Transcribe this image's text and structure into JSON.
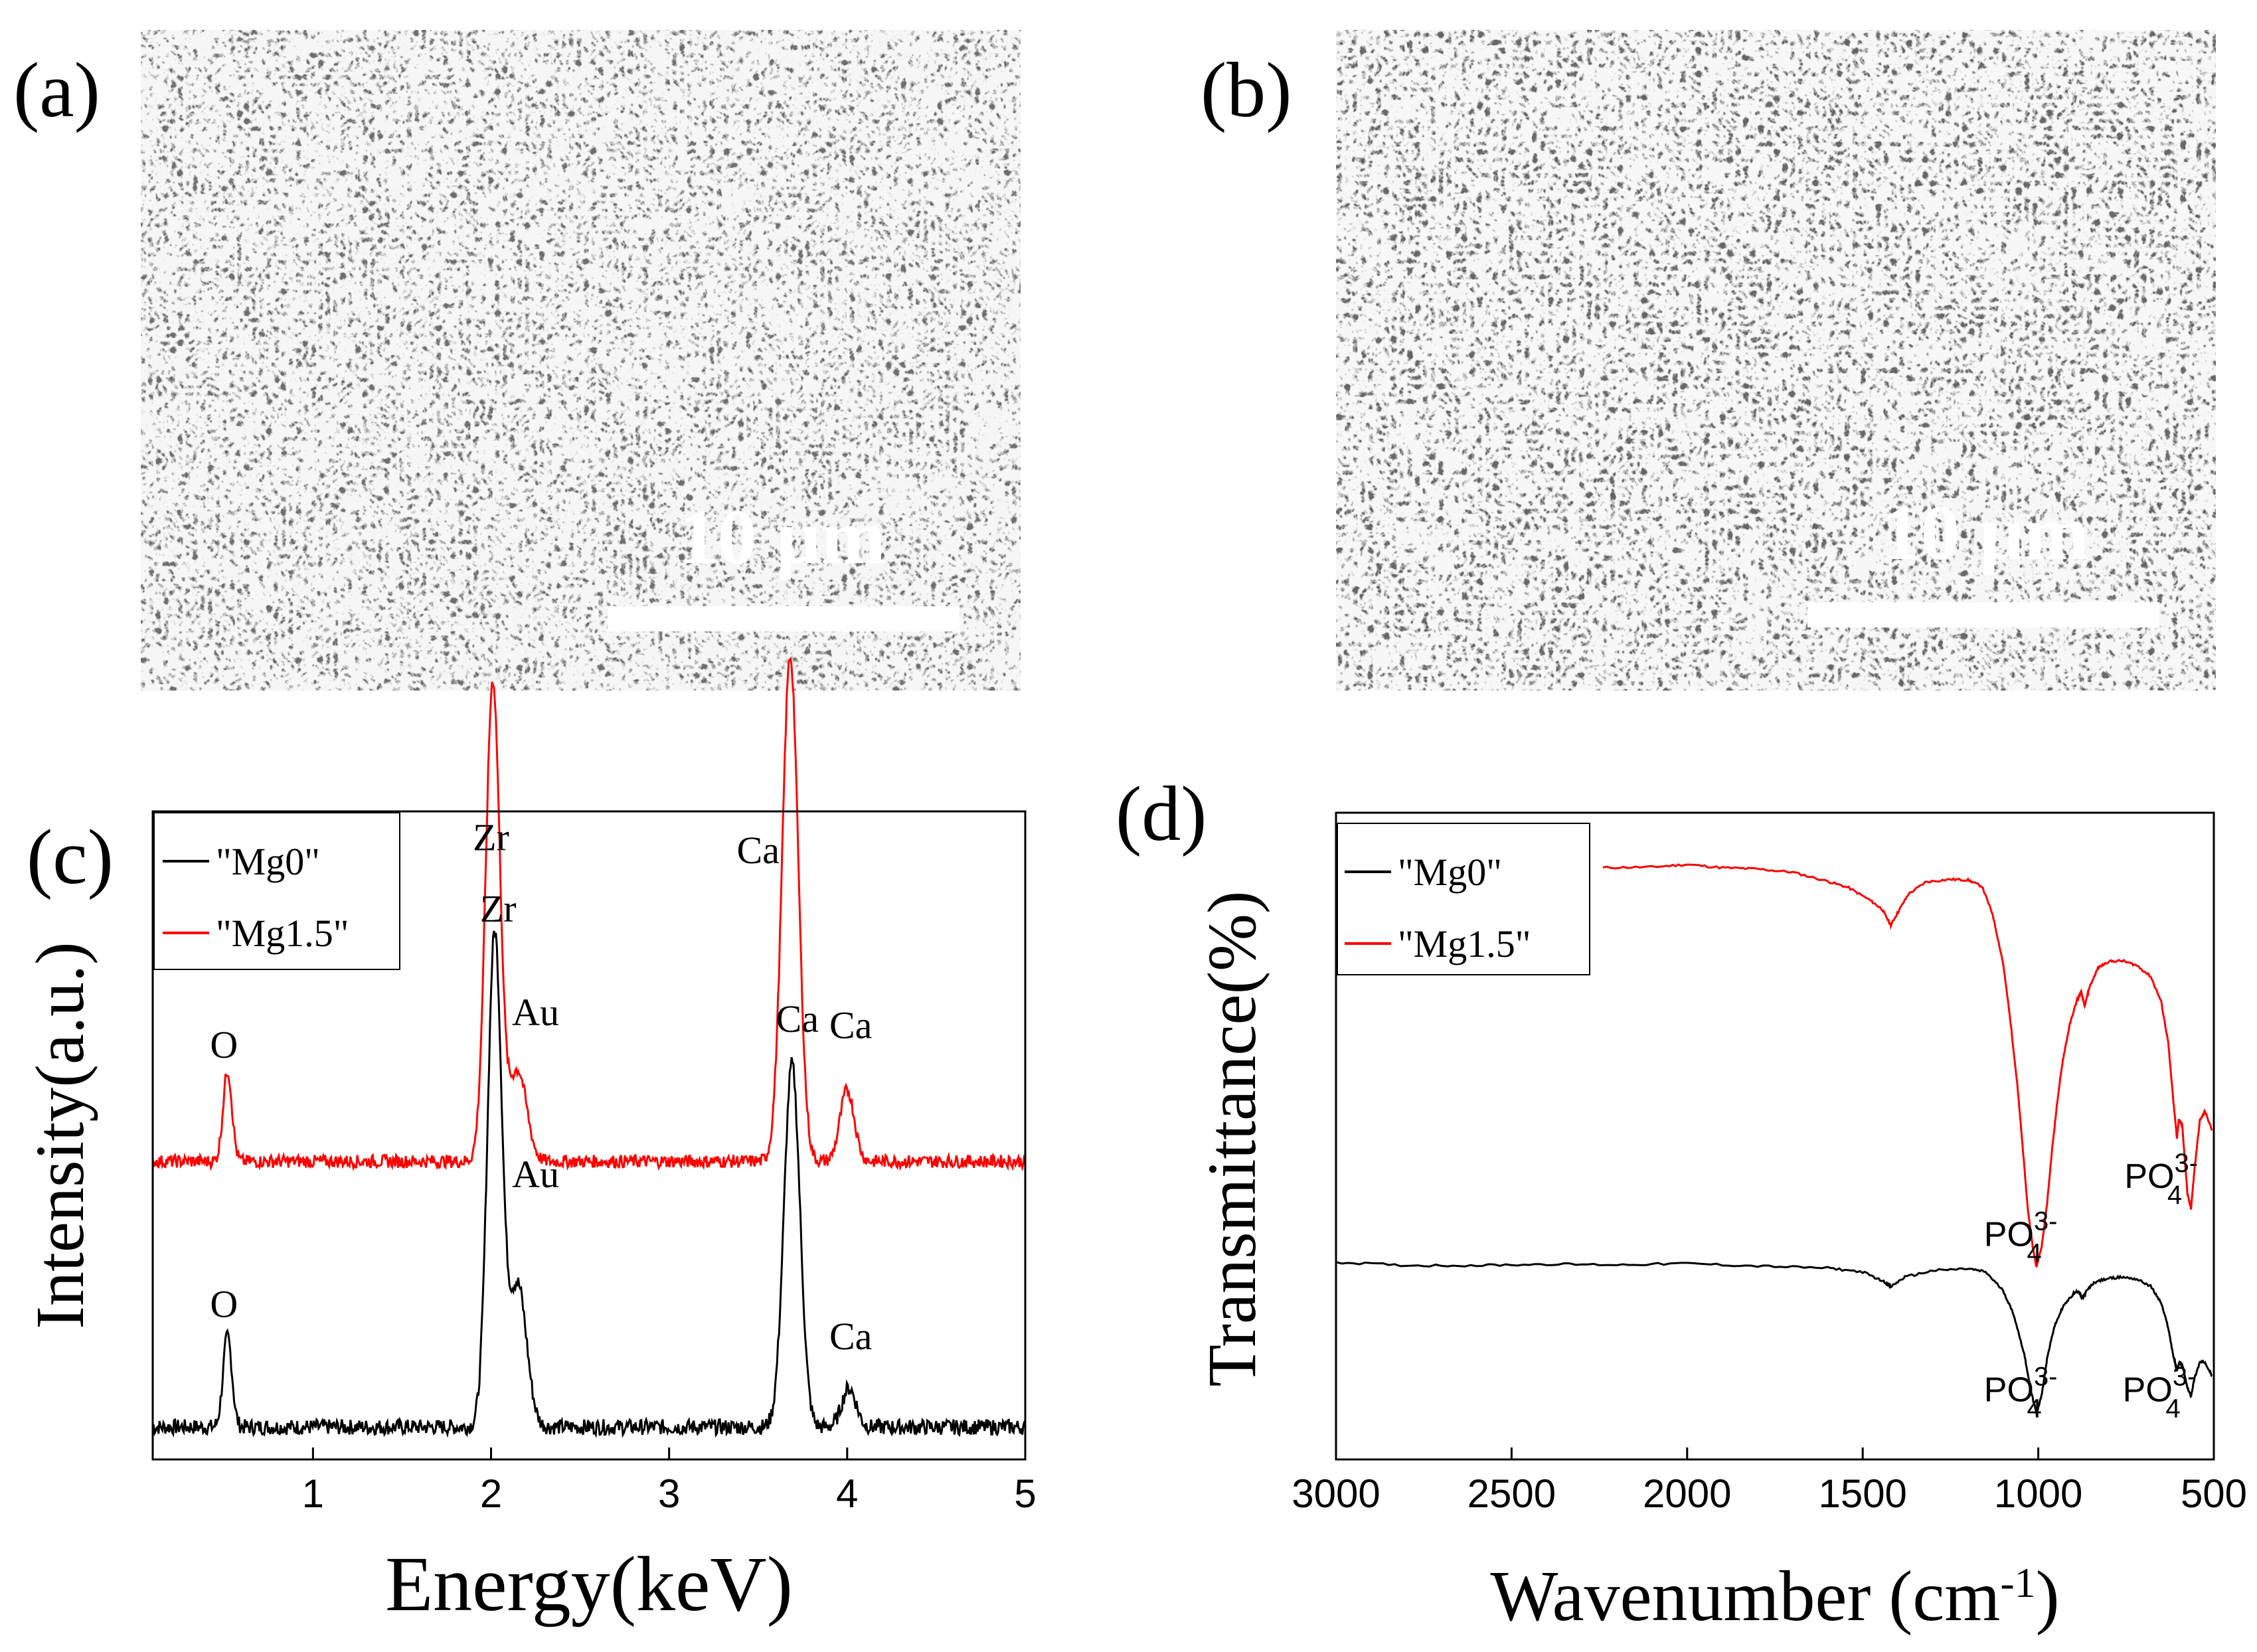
{
  "panels": {
    "a": {
      "label": "(a)",
      "scale_bar": "10 μm"
    },
    "b": {
      "label": "(b)",
      "scale_bar": "10 μm"
    },
    "c": {
      "label": "(c)"
    },
    "d": {
      "label": "(d)"
    }
  },
  "colors": {
    "black_series": "#000000",
    "red_series": "#ff0000",
    "sem_base": "#6e6e6e"
  },
  "chart_data": [
    {
      "type": "line",
      "panel": "c",
      "title": "",
      "xlabel": "Energy(keV)",
      "ylabel": "Intensity(a.u.)",
      "xlim": [
        0.1,
        5.0
      ],
      "ylim": [
        0,
        100
      ],
      "xticks": [
        1,
        2,
        3,
        4,
        5
      ],
      "legend": {
        "position": "top-left",
        "entries": [
          {
            "name": "\"Mg0\"",
            "color": "#000000"
          },
          {
            "name": "\"Mg1.5\"",
            "color": "#ff0000"
          }
        ]
      },
      "series": [
        {
          "name": "\"Mg0\"",
          "color": "#000000",
          "baseline": 5,
          "noise": 1.2,
          "peaks": [
            {
              "x": 0.52,
              "height": 14,
              "width": 0.025
            },
            {
              "x": 2.02,
              "height": 76,
              "width": 0.04
            },
            {
              "x": 2.15,
              "height": 22,
              "width": 0.05
            },
            {
              "x": 3.69,
              "height": 56,
              "width": 0.045
            },
            {
              "x": 4.01,
              "height": 6,
              "width": 0.04
            }
          ]
        },
        {
          "name": "\"Mg1.5\"",
          "color": "#ff0000",
          "baseline": 46,
          "noise": 1.0,
          "peaks": [
            {
              "x": 0.52,
              "height": 14,
              "width": 0.025
            },
            {
              "x": 2.01,
              "height": 74,
              "width": 0.04
            },
            {
              "x": 2.15,
              "height": 14,
              "width": 0.05
            },
            {
              "x": 3.68,
              "height": 78,
              "width": 0.045
            },
            {
              "x": 4.0,
              "height": 11,
              "width": 0.04
            }
          ]
        }
      ],
      "annotations": [
        {
          "text": "O",
          "x": 0.5,
          "y": 62
        },
        {
          "text": "Zr",
          "x": 2.0,
          "y": 94
        },
        {
          "text": "Au",
          "x": 2.25,
          "y": 67
        },
        {
          "text": "Ca",
          "x": 3.5,
          "y": 92
        },
        {
          "text": "Ca",
          "x": 4.02,
          "y": 65
        },
        {
          "text": "O",
          "x": 0.5,
          "y": 22
        },
        {
          "text": "Zr",
          "x": 2.04,
          "y": 83
        },
        {
          "text": "Au",
          "x": 2.25,
          "y": 42
        },
        {
          "text": "Ca",
          "x": 3.72,
          "y": 66
        },
        {
          "text": "Ca",
          "x": 4.02,
          "y": 17
        }
      ]
    },
    {
      "type": "line",
      "panel": "d",
      "title": "",
      "xlabel": "Wavenumber (cm-1)",
      "ylabel": "Transmittance(%)",
      "xlim": [
        3000,
        500
      ],
      "ylim": [
        0,
        100
      ],
      "xticks": [
        3000,
        2500,
        2000,
        1500,
        1000,
        500
      ],
      "legend": {
        "position": "top-left",
        "entries": [
          {
            "name": "\"Mg0\"",
            "color": "#000000"
          },
          {
            "name": "\"Mg1.5\"",
            "color": "#ff0000"
          }
        ]
      },
      "series": [
        {
          "name": "\"Mg1.5\"",
          "color": "#ff0000",
          "points": [
            [
              2240,
              91.5
            ],
            [
              2100,
              91.6
            ],
            [
              2000,
              92.0
            ],
            [
              1900,
              91.5
            ],
            [
              1800,
              91.3
            ],
            [
              1700,
              90.8
            ],
            [
              1600,
              89.4
            ],
            [
              1540,
              88.4
            ],
            [
              1480,
              86.5
            ],
            [
              1445,
              85.1
            ],
            [
              1420,
              82.6
            ],
            [
              1400,
              84.6
            ],
            [
              1370,
              87.4
            ],
            [
              1320,
              89.3
            ],
            [
              1250,
              89.7
            ],
            [
              1200,
              89.6
            ],
            [
              1160,
              88.6
            ],
            [
              1130,
              84.3
            ],
            [
              1100,
              76.7
            ],
            [
              1080,
              68.1
            ],
            [
              1060,
              58.1
            ],
            [
              1045,
              48.7
            ],
            [
              1030,
              38.8
            ],
            [
              1015,
              32.6
            ],
            [
              1005,
              29.8
            ],
            [
              990,
              33.0
            ],
            [
              975,
              39.5
            ],
            [
              960,
              48.3
            ],
            [
              945,
              55.7
            ],
            [
              930,
              61.8
            ],
            [
              910,
              67.3
            ],
            [
              890,
              71.0
            ],
            [
              878,
              72.3
            ],
            [
              868,
              70.0
            ],
            [
              855,
              72.9
            ],
            [
              830,
              76.0
            ],
            [
              800,
              77.0
            ],
            [
              760,
              77.1
            ],
            [
              720,
              76.4
            ],
            [
              680,
              74.7
            ],
            [
              650,
              70.8
            ],
            [
              630,
              64.5
            ],
            [
              615,
              55.2
            ],
            [
              605,
              49.7
            ],
            [
              600,
              52.5
            ],
            [
              590,
              51.6
            ],
            [
              575,
              41.0
            ],
            [
              565,
              38.8
            ],
            [
              555,
              44.9
            ],
            [
              540,
              52.4
            ],
            [
              525,
              53.8
            ],
            [
              505,
              50.9
            ]
          ]
        },
        {
          "name": "\"Mg0\"",
          "color": "#000000",
          "points": [
            [
              3000,
              30.5
            ],
            [
              2800,
              30.0
            ],
            [
              2600,
              30.0
            ],
            [
              2400,
              30.2
            ],
            [
              2200,
              30.1
            ],
            [
              2000,
              30.3
            ],
            [
              1800,
              29.9
            ],
            [
              1600,
              29.6
            ],
            [
              1500,
              29.0
            ],
            [
              1440,
              27.5
            ],
            [
              1420,
              26.7
            ],
            [
              1380,
              28.2
            ],
            [
              1300,
              29.2
            ],
            [
              1200,
              29.5
            ],
            [
              1150,
              29.0
            ],
            [
              1100,
              26.1
            ],
            [
              1070,
              22.4
            ],
            [
              1040,
              16.3
            ],
            [
              1020,
              10.4
            ],
            [
              1005,
              7.1
            ],
            [
              990,
              10.0
            ],
            [
              975,
              15.6
            ],
            [
              955,
              20.4
            ],
            [
              930,
              23.6
            ],
            [
              900,
              25.6
            ],
            [
              885,
              26.1
            ],
            [
              875,
              24.8
            ],
            [
              862,
              26.1
            ],
            [
              840,
              27.4
            ],
            [
              800,
              28.0
            ],
            [
              760,
              28.2
            ],
            [
              720,
              27.9
            ],
            [
              680,
              26.8
            ],
            [
              650,
              24.2
            ],
            [
              630,
              20.4
            ],
            [
              615,
              15.9
            ],
            [
              605,
              13.8
            ],
            [
              598,
              15.0
            ],
            [
              590,
              14.7
            ],
            [
              575,
              11.0
            ],
            [
              565,
              9.8
            ],
            [
              555,
              12.6
            ],
            [
              540,
              15.0
            ],
            [
              525,
              15.1
            ],
            [
              505,
              12.9
            ]
          ]
        }
      ],
      "annotations": [
        {
          "text": "PO",
          "superscript": "3-",
          "subscript": "4",
          "x": 1050,
          "y": 33
        },
        {
          "text": "PO",
          "superscript": "3-",
          "subscript": "4",
          "x": 650,
          "y": 42
        },
        {
          "text": "PO",
          "superscript": "3-",
          "subscript": "4",
          "x": 1050,
          "y": 9
        },
        {
          "text": "PO",
          "superscript": "3-",
          "subscript": "4",
          "x": 655,
          "y": 9
        }
      ]
    }
  ]
}
